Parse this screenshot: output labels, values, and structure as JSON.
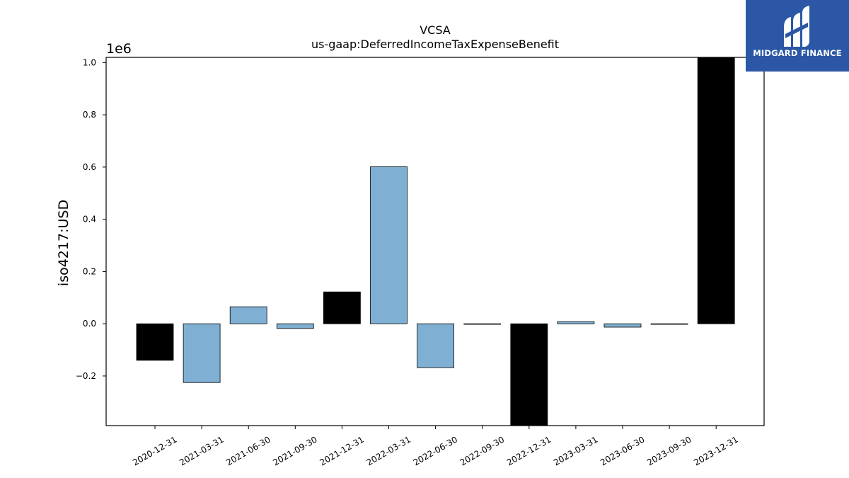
{
  "brand": {
    "name": "MIDGARD FINANCE",
    "color": "#2b57a6"
  },
  "chart_data": {
    "type": "bar",
    "title": "VCSA",
    "subtitle": "us-gaap:DeferredIncomeTaxExpenseBenefit",
    "ylabel": "iso4217:USD",
    "xlabel": "",
    "y_scale_label": "1e6",
    "ylim": [
      -0.39,
      1.02
    ],
    "yticks": [
      -0.2,
      0.0,
      0.2,
      0.4,
      0.6,
      0.8,
      1.0
    ],
    "ytick_labels": [
      "−0.2",
      "0.0",
      "0.2",
      "0.4",
      "0.6",
      "0.8",
      "1.0"
    ],
    "categories": [
      "2020-12-31",
      "2021-03-31",
      "2021-06-30",
      "2021-09-30",
      "2021-12-31",
      "2022-03-31",
      "2022-06-30",
      "2022-09-30",
      "2022-12-31",
      "2023-03-31",
      "2023-06-30",
      "2023-09-30",
      "2023-12-31"
    ],
    "values": [
      -0.14,
      -0.225,
      0.065,
      -0.018,
      0.122,
      0.601,
      -0.168,
      -0.001,
      -0.39,
      0.008,
      -0.013,
      -0.001,
      1.02
    ],
    "bar_colors": [
      "#000000",
      "#7fb0d3",
      "#7fb0d3",
      "#7fb0d3",
      "#000000",
      "#7fb0d3",
      "#7fb0d3",
      "#7fb0d3",
      "#000000",
      "#7fb0d3",
      "#7fb0d3",
      "#7fb0d3",
      "#000000"
    ],
    "grid": false,
    "legend": "none"
  }
}
